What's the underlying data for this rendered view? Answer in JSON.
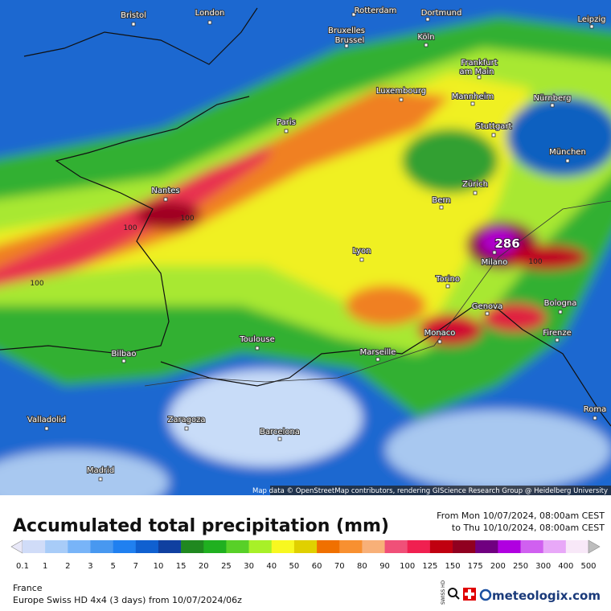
{
  "map": {
    "cities": [
      "Bristol",
      "London",
      "Rotterdam",
      "Dortmund",
      "Leipzig",
      "Bruxelles",
      "Brussel",
      "Köln",
      "Frankfurt",
      "am Main",
      "Luxembourg",
      "Mannheim",
      "Nürnberg",
      "Paris",
      "Stuttgart",
      "München",
      "Nantes",
      "Zürich",
      "Bern",
      "Lyon",
      "Milano",
      "Torino",
      "Bologna",
      "Genova",
      "Firenze",
      "Monaco",
      "Toulouse",
      "Marseille",
      "Bilbao",
      "Valladolid",
      "Zaragoza",
      "Barcelona",
      "Roma",
      "Madrid"
    ],
    "max_label": "286",
    "contour_labels": [
      "100",
      "100",
      "100",
      "100"
    ],
    "attribution": "Map data © OpenStreetMap contributors, rendering GIScience Research Group @ Heidelberg University"
  },
  "header": {
    "title": "Accumulated total precipitation (mm)",
    "period_from": "From Mon 10/07/2024, 08:00am CEST",
    "period_to": "to Thu 10/10/2024, 08:00am CEST"
  },
  "legend": {
    "labels": [
      0.1,
      1,
      2,
      3,
      5,
      7,
      10,
      15,
      20,
      25,
      30,
      40,
      50,
      60,
      70,
      80,
      90,
      100,
      125,
      150,
      175,
      200,
      250,
      300,
      400,
      500
    ],
    "colors": [
      "#e8e8f8",
      "#d0dcf8",
      "#a8ccf8",
      "#78b4f8",
      "#4898f0",
      "#2080f0",
      "#1060d0",
      "#1040a0",
      "#208820",
      "#20b020",
      "#58d028",
      "#a8f028",
      "#f8f820",
      "#e0d000",
      "#f07000",
      "#f89030",
      "#f8b078",
      "#f05078",
      "#f02050",
      "#c00010",
      "#900020",
      "#700080",
      "#b000e0",
      "#d060f0",
      "#e8a8f8",
      "#f8e8f8",
      "#bdbdbd"
    ]
  },
  "footer": {
    "region": "France",
    "model": "Europe Swiss HD 4x4 (3 days) from 10/07/2024/06z",
    "badge": "SWISS HD",
    "brand": "meteologix.com"
  }
}
